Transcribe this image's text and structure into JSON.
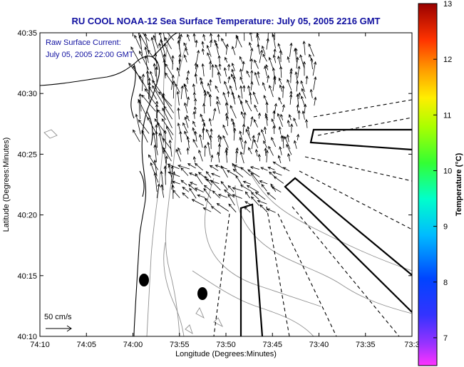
{
  "title": "RU COOL  NOAA-12  Sea Surface Temperature:  July 05, 2005 2216 GMT",
  "annotation": {
    "line1": "Raw Surface Current:",
    "line2": "July 05, 2005 22:00 GMT"
  },
  "scale_label": "50 cm/s",
  "colors": {
    "title": "#1010a0",
    "land": "#ffffff",
    "contour": "#909090",
    "coast": "#000000"
  },
  "chart_data": {
    "type": "map",
    "xlabel": "Longitude (Degrees:Minutes)",
    "ylabel": "Latitude (Degrees:Minutes)",
    "x_ticks": [
      "74:10",
      "74:05",
      "74:00",
      "73:55",
      "73:50",
      "73:45",
      "73:40",
      "73:35",
      "73:3"
    ],
    "y_ticks": [
      "40:35",
      "40:30",
      "40:25",
      "40:20",
      "40:15",
      "40:10"
    ],
    "xlim_deg": [
      -74.1667,
      -73.5
    ],
    "ylim_deg": [
      40.1667,
      40.5833
    ],
    "colorbar": {
      "label": "Temperature (°C)",
      "min": 6.5,
      "max": 13,
      "ticks": [
        "13",
        "12",
        "11",
        "10",
        "9",
        "8",
        "7"
      ]
    }
  }
}
